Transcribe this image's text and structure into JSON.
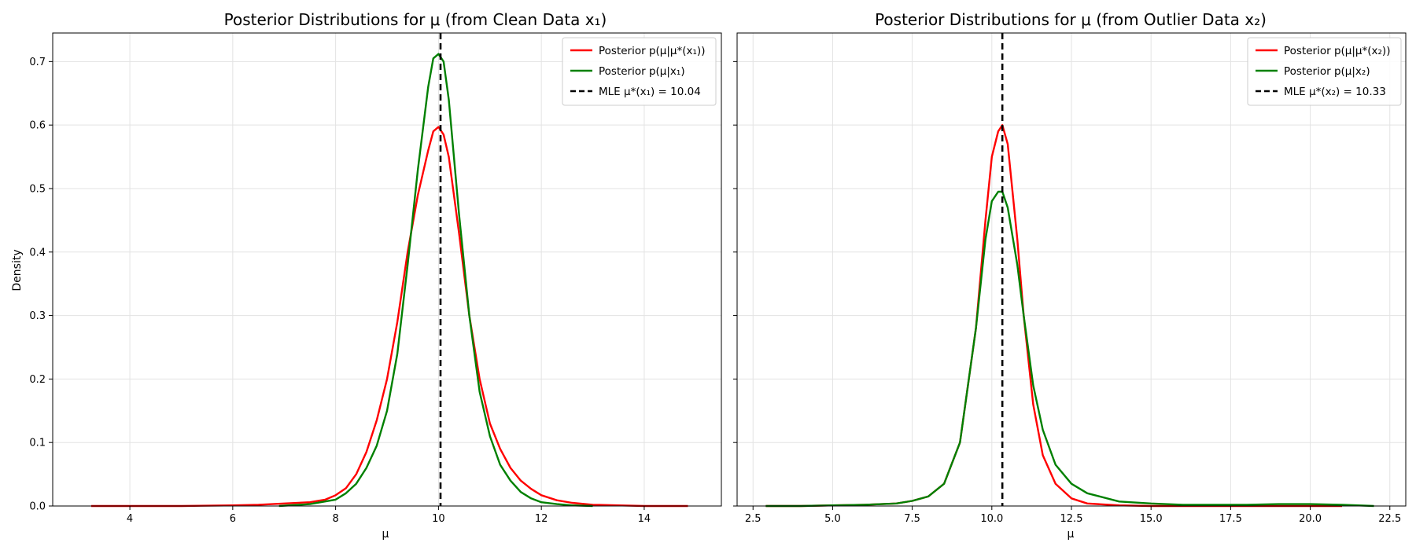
{
  "figure_colors": {
    "background": "#ffffff",
    "red": "#ff0000",
    "green": "#008000",
    "mle": "#000000",
    "grid": "#e3e3e3"
  },
  "chart_data": [
    {
      "type": "line",
      "title": "Posterior Distributions for μ (from Clean Data x₁)",
      "xlabel": "μ",
      "ylabel": "Density",
      "xlim": [
        2.5,
        15.5
      ],
      "ylim": [
        0,
        0.745
      ],
      "xticks": [
        4,
        6,
        8,
        10,
        12,
        14
      ],
      "xtick_labels": [
        "4",
        "6",
        "8",
        "10",
        "12",
        "14"
      ],
      "yticks": [
        0,
        0.1,
        0.2,
        0.3,
        0.4,
        0.5,
        0.6,
        0.7
      ],
      "ytick_labels": [
        "0.0",
        "0.1",
        "0.2",
        "0.3",
        "0.4",
        "0.5",
        "0.6",
        "0.7"
      ],
      "grid": true,
      "legend_position": "top-right",
      "series": [
        {
          "name": "Posterior p(μ|μ*(x₁))",
          "color": "#ff0000",
          "x": [
            3.25,
            4.0,
            5.0,
            6.0,
            6.5,
            7.0,
            7.5,
            7.8,
            8.0,
            8.2,
            8.4,
            8.6,
            8.8,
            9.0,
            9.2,
            9.4,
            9.6,
            9.8,
            9.9,
            10.0,
            10.1,
            10.2,
            10.4,
            10.6,
            10.8,
            11.0,
            11.2,
            11.4,
            11.6,
            11.8,
            12.0,
            12.3,
            12.6,
            13.0,
            13.5,
            14.0,
            14.85
          ],
          "y": [
            0.0,
            0.0,
            0.0,
            0.001,
            0.002,
            0.004,
            0.006,
            0.01,
            0.017,
            0.028,
            0.05,
            0.085,
            0.135,
            0.2,
            0.29,
            0.4,
            0.49,
            0.56,
            0.59,
            0.597,
            0.585,
            0.55,
            0.43,
            0.3,
            0.2,
            0.13,
            0.09,
            0.06,
            0.04,
            0.027,
            0.017,
            0.009,
            0.005,
            0.002,
            0.001,
            0.0,
            0.0
          ]
        },
        {
          "name": "Posterior p(μ|x₁)",
          "color": "#008000",
          "x": [
            6.9,
            7.5,
            8.0,
            8.2,
            8.4,
            8.6,
            8.8,
            9.0,
            9.2,
            9.4,
            9.6,
            9.8,
            9.9,
            10.0,
            10.1,
            10.2,
            10.4,
            10.6,
            10.8,
            11.0,
            11.2,
            11.4,
            11.6,
            11.8,
            12.0,
            12.3,
            12.6,
            13.0
          ],
          "y": [
            0.0,
            0.003,
            0.01,
            0.02,
            0.035,
            0.06,
            0.095,
            0.15,
            0.24,
            0.38,
            0.53,
            0.66,
            0.705,
            0.712,
            0.7,
            0.64,
            0.46,
            0.3,
            0.18,
            0.11,
            0.065,
            0.04,
            0.022,
            0.012,
            0.006,
            0.003,
            0.001,
            0.0
          ]
        }
      ],
      "mle": {
        "x": 10.04,
        "label": "MLE μ*(x₁) = 10.04",
        "style": "dashed",
        "color": "#000000"
      },
      "legend": [
        "Posterior p(μ|μ*(x₁))",
        "Posterior p(μ|x₁)",
        "MLE μ*(x₁) = 10.04"
      ]
    },
    {
      "type": "line",
      "title": "Posterior Distributions for μ (from Outlier Data x₂)",
      "xlabel": "μ",
      "ylabel": "",
      "xlim": [
        2.0,
        23.0
      ],
      "ylim": [
        0,
        0.745
      ],
      "xticks": [
        2.5,
        5.0,
        7.5,
        10.0,
        12.5,
        15.0,
        17.5,
        20.0,
        22.5
      ],
      "xtick_labels": [
        "2.5",
        "5.0",
        "7.5",
        "10.0",
        "12.5",
        "15.0",
        "17.5",
        "20.0",
        "22.5"
      ],
      "yticks": [
        0,
        0.1,
        0.2,
        0.3,
        0.4,
        0.5,
        0.6,
        0.7
      ],
      "ytick_labels": [],
      "grid": true,
      "legend_position": "top-right",
      "series": [
        {
          "name": "Posterior p(μ|μ*(x₂))",
          "color": "#ff0000",
          "x": [
            2.9,
            4.0,
            5.0,
            6.0,
            7.0,
            7.5,
            8.0,
            8.5,
            9.0,
            9.5,
            9.8,
            10.0,
            10.2,
            10.33,
            10.5,
            10.8,
            11.0,
            11.3,
            11.6,
            12.0,
            12.5,
            13.0,
            14.0,
            15.0,
            17.0,
            19.0,
            21.0
          ],
          "y": [
            0.0,
            0.0,
            0.001,
            0.002,
            0.004,
            0.008,
            0.015,
            0.035,
            0.1,
            0.28,
            0.45,
            0.55,
            0.59,
            0.6,
            0.57,
            0.42,
            0.3,
            0.16,
            0.08,
            0.035,
            0.012,
            0.004,
            0.001,
            0.0,
            0.0,
            0.0,
            0.0
          ]
        },
        {
          "name": "Posterior p(μ|x₂)",
          "color": "#008000",
          "x": [
            2.9,
            4.0,
            5.0,
            6.0,
            7.0,
            7.5,
            8.0,
            8.5,
            9.0,
            9.5,
            9.8,
            10.0,
            10.2,
            10.33,
            10.5,
            10.8,
            11.0,
            11.3,
            11.6,
            12.0,
            12.5,
            13.0,
            14.0,
            15.0,
            16.0,
            17.0,
            18.0,
            19.0,
            20.0,
            21.0,
            22.0
          ],
          "y": [
            0.0,
            0.0,
            0.001,
            0.002,
            0.004,
            0.008,
            0.015,
            0.035,
            0.1,
            0.28,
            0.42,
            0.48,
            0.495,
            0.495,
            0.47,
            0.38,
            0.3,
            0.19,
            0.12,
            0.065,
            0.035,
            0.02,
            0.007,
            0.004,
            0.002,
            0.002,
            0.002,
            0.003,
            0.003,
            0.002,
            0.0
          ]
        }
      ],
      "mle": {
        "x": 10.33,
        "label": "MLE μ*(x₂) = 10.33",
        "style": "dashed",
        "color": "#000000"
      },
      "legend": [
        "Posterior p(μ|μ*(x₂))",
        "Posterior p(μ|x₂)",
        "MLE μ*(x₂) = 10.33"
      ]
    }
  ]
}
